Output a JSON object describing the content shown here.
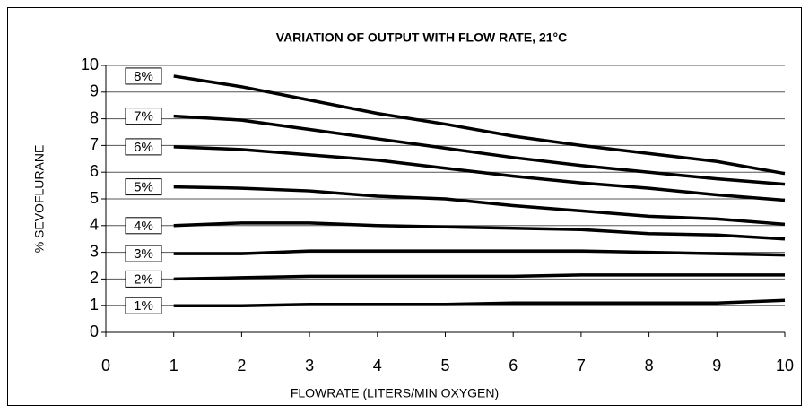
{
  "chart_data": {
    "type": "line",
    "title": "VARIATION OF OUTPUT WITH FLOW RATE, 21°C",
    "xlabel": "FLOWRATE (LITERS/MIN OXYGEN)",
    "ylabel": "% SEVOFLURANE",
    "x": [
      1,
      2,
      3,
      4,
      5,
      6,
      7,
      8,
      9,
      10
    ],
    "series": [
      {
        "name": "8%",
        "color": "#000000",
        "values": [
          9.6,
          9.2,
          8.7,
          8.2,
          7.8,
          7.35,
          7.0,
          6.7,
          6.4,
          5.95
        ]
      },
      {
        "name": "7%",
        "color": "#000000",
        "values": [
          8.1,
          7.95,
          7.6,
          7.25,
          6.9,
          6.55,
          6.25,
          6.0,
          5.75,
          5.55
        ]
      },
      {
        "name": "6%",
        "color": "#000000",
        "values": [
          6.95,
          6.85,
          6.65,
          6.45,
          6.15,
          5.85,
          5.6,
          5.4,
          5.15,
          4.95
        ]
      },
      {
        "name": "5%",
        "color": "#000000",
        "values": [
          5.45,
          5.4,
          5.3,
          5.1,
          5.0,
          4.75,
          4.55,
          4.35,
          4.25,
          4.05
        ]
      },
      {
        "name": "4%",
        "color": "#000000",
        "values": [
          4.0,
          4.1,
          4.1,
          4.0,
          3.95,
          3.9,
          3.85,
          3.7,
          3.65,
          3.5
        ]
      },
      {
        "name": "3%",
        "color": "#000000",
        "values": [
          2.95,
          2.95,
          3.05,
          3.05,
          3.05,
          3.05,
          3.05,
          3.0,
          2.95,
          2.9
        ]
      },
      {
        "name": "2%",
        "color": "#000000",
        "values": [
          2.0,
          2.05,
          2.1,
          2.1,
          2.1,
          2.1,
          2.15,
          2.15,
          2.15,
          2.15
        ]
      },
      {
        "name": "1%",
        "color": "#000000",
        "values": [
          1.0,
          1.0,
          1.05,
          1.05,
          1.05,
          1.1,
          1.1,
          1.1,
          1.1,
          1.2
        ]
      }
    ],
    "xlim": [
      0,
      10
    ],
    "xticks": [
      0,
      1,
      2,
      3,
      4,
      5,
      6,
      7,
      8,
      9,
      10
    ],
    "ylim": [
      0,
      10
    ],
    "yticks": [
      0,
      1,
      2,
      3,
      4,
      5,
      6,
      7,
      8,
      9,
      10
    ],
    "grid": true
  }
}
